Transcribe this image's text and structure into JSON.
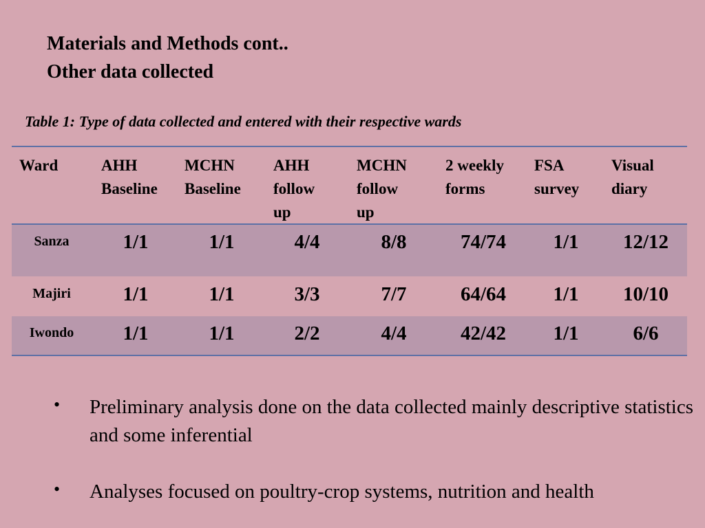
{
  "title_line1": "Materials and Methods cont..",
  "title_line2": "Other data collected",
  "caption": "Table 1: Type of data collected and entered  with their respective wards",
  "table": {
    "headers": [
      [
        "Ward"
      ],
      [
        "AHH",
        "Baseline"
      ],
      [
        "MCHN",
        "Baseline"
      ],
      [
        "AHH",
        "follow",
        "up"
      ],
      [
        "MCHN",
        "follow",
        "up"
      ],
      [
        "2 weekly",
        "forms"
      ],
      [
        "FSA",
        "survey"
      ],
      [
        "Visual",
        "diary"
      ]
    ],
    "rows": [
      {
        "ward": "Sanza",
        "values": [
          "1/1",
          "1/1",
          "4/4",
          "8/8",
          "74/74",
          "1/1",
          "12/12"
        ]
      },
      {
        "ward": "Majiri",
        "values": [
          "1/1",
          "1/1",
          "3/3",
          "7/7",
          "64/64",
          "1/1",
          "10/10"
        ]
      },
      {
        "ward": "Iwondo",
        "values": [
          "1/1",
          "1/1",
          "2/2",
          "4/4",
          "42/42",
          "1/1",
          "6/6"
        ]
      }
    ]
  },
  "bullets": [
    "Preliminary analysis done on the data collected mainly descriptive statistics  and some inferential",
    "Analyses focused on poultry-crop systems, nutrition and health"
  ],
  "bullet_symbol": "•",
  "colors": {
    "background": "#d5a6b1",
    "row_band": "#b898ac",
    "rule": "#5c70a6"
  }
}
